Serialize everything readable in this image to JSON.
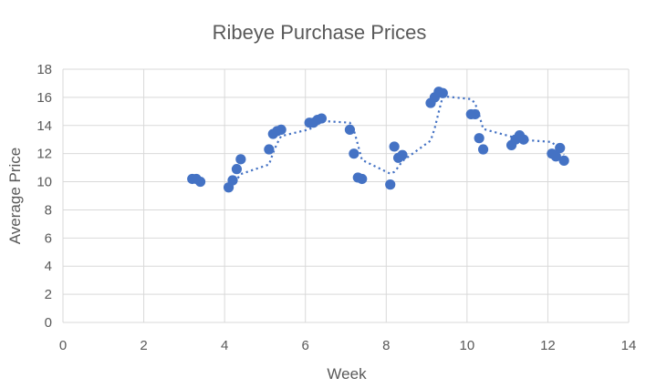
{
  "chart_data": {
    "type": "scatter",
    "title": "Ribeye Purchase Prices",
    "xlabel": "Week",
    "ylabel": "Average Price",
    "xlim": [
      0,
      14
    ],
    "ylim": [
      0,
      18
    ],
    "xticks": [
      "0",
      "2",
      "4",
      "6",
      "8",
      "10",
      "12",
      "14"
    ],
    "yticks": [
      "0",
      "2",
      "4",
      "6",
      "8",
      "10",
      "12",
      "14",
      "16",
      "18"
    ],
    "grid": true,
    "legend": "none",
    "series": [
      {
        "marker_color": "#4472c4",
        "trendline": "moving-average-dotted",
        "points": [
          {
            "x": 3.2,
            "y": 10.2
          },
          {
            "x": 3.3,
            "y": 10.2
          },
          {
            "x": 3.4,
            "y": 10.0
          },
          {
            "x": 4.1,
            "y": 9.6
          },
          {
            "x": 4.2,
            "y": 10.1
          },
          {
            "x": 4.3,
            "y": 10.9
          },
          {
            "x": 4.4,
            "y": 11.6
          },
          {
            "x": 5.1,
            "y": 12.3
          },
          {
            "x": 5.2,
            "y": 13.4
          },
          {
            "x": 5.3,
            "y": 13.6
          },
          {
            "x": 5.4,
            "y": 13.7
          },
          {
            "x": 6.1,
            "y": 14.2
          },
          {
            "x": 6.2,
            "y": 14.2
          },
          {
            "x": 6.3,
            "y": 14.4
          },
          {
            "x": 6.4,
            "y": 14.5
          },
          {
            "x": 7.1,
            "y": 13.7
          },
          {
            "x": 7.2,
            "y": 12.0
          },
          {
            "x": 7.3,
            "y": 10.3
          },
          {
            "x": 7.4,
            "y": 10.2
          },
          {
            "x": 8.1,
            "y": 9.8
          },
          {
            "x": 8.2,
            "y": 12.5
          },
          {
            "x": 8.3,
            "y": 11.7
          },
          {
            "x": 8.4,
            "y": 11.9
          },
          {
            "x": 9.1,
            "y": 15.6
          },
          {
            "x": 9.2,
            "y": 16.0
          },
          {
            "x": 9.3,
            "y": 16.4
          },
          {
            "x": 9.4,
            "y": 16.3
          },
          {
            "x": 10.1,
            "y": 14.8
          },
          {
            "x": 10.2,
            "y": 14.8
          },
          {
            "x": 10.3,
            "y": 13.1
          },
          {
            "x": 10.4,
            "y": 12.3
          },
          {
            "x": 11.1,
            "y": 12.6
          },
          {
            "x": 11.2,
            "y": 13.0
          },
          {
            "x": 11.3,
            "y": 13.3
          },
          {
            "x": 11.4,
            "y": 13.0
          },
          {
            "x": 12.1,
            "y": 12.0
          },
          {
            "x": 12.2,
            "y": 11.8
          },
          {
            "x": 12.3,
            "y": 12.4
          },
          {
            "x": 12.4,
            "y": 11.5
          }
        ]
      }
    ]
  }
}
